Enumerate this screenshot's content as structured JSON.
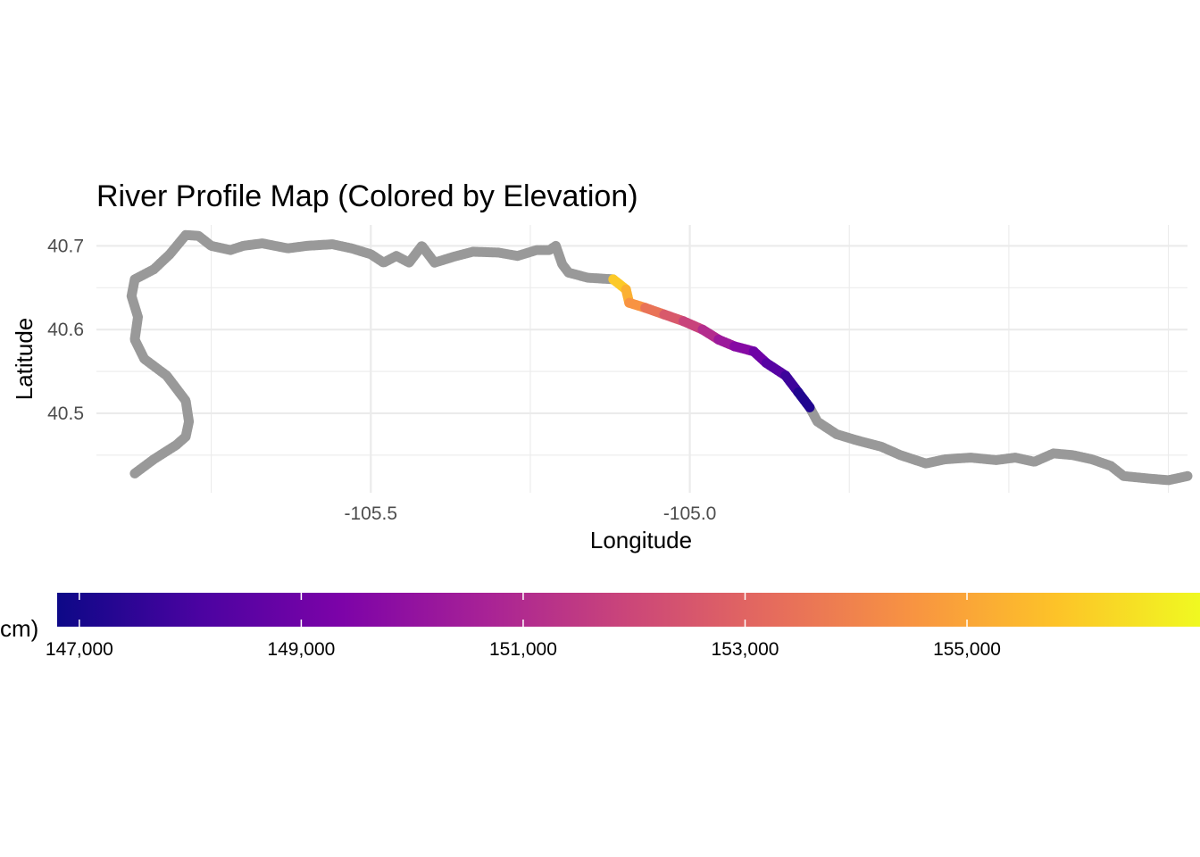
{
  "chart_data": {
    "type": "line",
    "title": "River Profile Map (Colored by Elevation)",
    "xlabel": "Longitude",
    "ylabel": "Latitude",
    "xlim": [
      -105.93,
      -104.22
    ],
    "ylim": [
      40.405,
      40.725
    ],
    "x_ticks": [
      -105.5,
      -105.0
    ],
    "x_tick_labels": [
      "-105.5",
      "-105.0"
    ],
    "y_ticks": [
      40.5,
      40.6,
      40.7
    ],
    "y_tick_labels": [
      "40.5",
      "40.6",
      "40.7"
    ],
    "grid": true,
    "na_color": "#999999",
    "river_path": [
      [
        -105.87,
        40.428
      ],
      [
        -105.84,
        40.445
      ],
      [
        -105.805,
        40.462
      ],
      [
        -105.79,
        40.472
      ],
      [
        -105.785,
        40.49
      ],
      [
        -105.79,
        40.515
      ],
      [
        -105.82,
        40.545
      ],
      [
        -105.855,
        40.565
      ],
      [
        -105.87,
        40.588
      ],
      [
        -105.865,
        40.615
      ],
      [
        -105.875,
        40.64
      ],
      [
        -105.87,
        40.66
      ],
      [
        -105.84,
        40.672
      ],
      [
        -105.815,
        40.69
      ],
      [
        -105.79,
        40.713
      ],
      [
        -105.77,
        40.712
      ],
      [
        -105.75,
        40.7
      ],
      [
        -105.72,
        40.695
      ],
      [
        -105.7,
        40.7
      ],
      [
        -105.67,
        40.703
      ],
      [
        -105.63,
        40.697
      ],
      [
        -105.6,
        40.7
      ],
      [
        -105.56,
        40.702
      ],
      [
        -105.53,
        40.697
      ],
      [
        -105.5,
        40.69
      ],
      [
        -105.48,
        40.68
      ],
      [
        -105.46,
        40.688
      ],
      [
        -105.44,
        40.68
      ],
      [
        -105.42,
        40.7
      ],
      [
        -105.4,
        40.68
      ],
      [
        -105.37,
        40.687
      ],
      [
        -105.34,
        40.693
      ],
      [
        -105.3,
        40.692
      ],
      [
        -105.27,
        40.688
      ],
      [
        -105.24,
        40.695
      ],
      [
        -105.22,
        40.695
      ],
      [
        -105.21,
        40.7
      ],
      [
        -105.2,
        40.678
      ],
      [
        -105.19,
        40.668
      ],
      [
        -105.16,
        40.662
      ],
      [
        -105.12,
        40.66
      ]
    ],
    "elevation_path": [
      {
        "x": -105.12,
        "y": 40.66,
        "elevation_cm": 156300
      },
      {
        "x": -105.1,
        "y": 40.648,
        "elevation_cm": 155600
      },
      {
        "x": -105.095,
        "y": 40.632,
        "elevation_cm": 155000
      },
      {
        "x": -105.07,
        "y": 40.626,
        "elevation_cm": 154000
      },
      {
        "x": -105.04,
        "y": 40.618,
        "elevation_cm": 153000
      },
      {
        "x": -105.01,
        "y": 40.61,
        "elevation_cm": 152200
      },
      {
        "x": -104.98,
        "y": 40.6,
        "elevation_cm": 151500
      },
      {
        "x": -104.955,
        "y": 40.588,
        "elevation_cm": 150600
      },
      {
        "x": -104.93,
        "y": 40.58,
        "elevation_cm": 150000
      },
      {
        "x": -104.9,
        "y": 40.574,
        "elevation_cm": 149300
      },
      {
        "x": -104.88,
        "y": 40.56,
        "elevation_cm": 148700
      },
      {
        "x": -104.85,
        "y": 40.545,
        "elevation_cm": 148100
      },
      {
        "x": -104.83,
        "y": 40.525,
        "elevation_cm": 147500
      },
      {
        "x": -104.812,
        "y": 40.507,
        "elevation_cm": 146900
      }
    ],
    "downstream_path": [
      [
        -104.812,
        40.507
      ],
      [
        -104.8,
        40.49
      ],
      [
        -104.77,
        40.475
      ],
      [
        -104.74,
        40.468
      ],
      [
        -104.7,
        40.46
      ],
      [
        -104.67,
        40.45
      ],
      [
        -104.63,
        40.44
      ],
      [
        -104.6,
        40.445
      ],
      [
        -104.56,
        40.447
      ],
      [
        -104.52,
        40.444
      ],
      [
        -104.49,
        40.447
      ],
      [
        -104.46,
        40.442
      ],
      [
        -104.43,
        40.452
      ],
      [
        -104.4,
        40.45
      ],
      [
        -104.37,
        40.445
      ],
      [
        -104.34,
        40.437
      ],
      [
        -104.32,
        40.425
      ],
      [
        -104.28,
        40.422
      ],
      [
        -104.25,
        40.42
      ],
      [
        -104.22,
        40.425
      ]
    ],
    "colorbar": {
      "label_fragment": "cm)",
      "palette": [
        "#0d0887",
        "#4b03a1",
        "#7d03a8",
        "#a82296",
        "#cb4679",
        "#e56b5d",
        "#f89441",
        "#fdc328",
        "#f0f921"
      ],
      "range_cm": [
        146800,
        157100
      ],
      "ticks": [
        147000,
        149000,
        151000,
        153000,
        155000
      ],
      "tick_labels": [
        "147,000",
        "149,000",
        "151,000",
        "153,000",
        "155,000"
      ]
    }
  }
}
